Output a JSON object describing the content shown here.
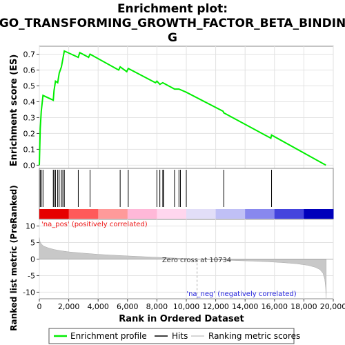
{
  "chart_data": {
    "type": "line",
    "title_lines": [
      "Enrichment plot:",
      "GO_TRANSFORMING_GROWTH_FACTOR_BETA_BINDIN",
      "G"
    ],
    "ylabel_top": "Enrichment score (ES)",
    "ylabel_bottom": "Ranked list metric (PreRanked)",
    "xlabel": "Rank in Ordered Dataset",
    "x_range": [
      0,
      20000
    ],
    "es_ylim": [
      -0.02,
      0.75
    ],
    "metric_ylim": [
      -12,
      12
    ],
    "es_yticks": [
      "0.0",
      "0.1",
      "0.2",
      "0.3",
      "0.4",
      "0.5",
      "0.6",
      "0.7"
    ],
    "metric_yticks": [
      "-10",
      "-5",
      "0",
      "5",
      "10"
    ],
    "xticks": [
      "0",
      "2,000",
      "4,000",
      "6,000",
      "8,000",
      "10,000",
      "12,000",
      "14,000",
      "16,000",
      "18,000",
      "20,000"
    ],
    "es_curve": [
      [
        0,
        0.0
      ],
      [
        60,
        0.23
      ],
      [
        130,
        0.34
      ],
      [
        250,
        0.44
      ],
      [
        950,
        0.41
      ],
      [
        1000,
        0.47
      ],
      [
        1100,
        0.53
      ],
      [
        1250,
        0.52
      ],
      [
        1350,
        0.58
      ],
      [
        1500,
        0.62
      ],
      [
        1600,
        0.67
      ],
      [
        1700,
        0.72
      ],
      [
        2650,
        0.68
      ],
      [
        2750,
        0.71
      ],
      [
        3350,
        0.68
      ],
      [
        3450,
        0.7
      ],
      [
        5400,
        0.6
      ],
      [
        5500,
        0.62
      ],
      [
        5950,
        0.59
      ],
      [
        6050,
        0.61
      ],
      [
        7900,
        0.52
      ],
      [
        8000,
        0.53
      ],
      [
        8200,
        0.51
      ],
      [
        8400,
        0.52
      ],
      [
        9200,
        0.48
      ],
      [
        9500,
        0.48
      ],
      [
        10000,
        0.46
      ],
      [
        12500,
        0.34
      ],
      [
        12550,
        0.33
      ],
      [
        15750,
        0.17
      ],
      [
        15800,
        0.19
      ],
      [
        19500,
        0.0
      ]
    ],
    "hits": [
      60,
      130,
      250,
      950,
      1000,
      1100,
      1250,
      1350,
      1500,
      1600,
      1700,
      2650,
      3450,
      5500,
      6050,
      8000,
      8200,
      8400,
      8450,
      9200,
      9500,
      9600,
      10000,
      12550,
      15800
    ],
    "metric_curve": [
      [
        0,
        6.5
      ],
      [
        50,
        5.2
      ],
      [
        150,
        4.5
      ],
      [
        300,
        3.9
      ],
      [
        600,
        3.4
      ],
      [
        1000,
        2.9
      ],
      [
        1500,
        2.5
      ],
      [
        2000,
        2.2
      ],
      [
        3000,
        1.8
      ],
      [
        4000,
        1.45
      ],
      [
        5000,
        1.2
      ],
      [
        6000,
        0.95
      ],
      [
        7000,
        0.75
      ],
      [
        8000,
        0.55
      ],
      [
        9000,
        0.35
      ],
      [
        10000,
        0.15
      ],
      [
        10734,
        0.0
      ],
      [
        11500,
        -0.15
      ],
      [
        12500,
        -0.3
      ],
      [
        13500,
        -0.45
      ],
      [
        14500,
        -0.6
      ],
      [
        15500,
        -0.8
      ],
      [
        16500,
        -1.05
      ],
      [
        17500,
        -1.4
      ],
      [
        18300,
        -1.9
      ],
      [
        18800,
        -2.5
      ],
      [
        19100,
        -3.2
      ],
      [
        19300,
        -4.3
      ],
      [
        19420,
        -6.0
      ],
      [
        19480,
        -8.5
      ],
      [
        19520,
        -11.8
      ]
    ],
    "zero_cross_label": "Zero cross at 10734",
    "zero_cross_rank": 10734,
    "pos_label": "'na_pos' (positively correlated)",
    "neg_label": "'na_neg' (negatively correlated)",
    "legend": [
      "Enrichment profile",
      "Hits",
      "Ranking metric scores"
    ],
    "colors": {
      "es_line": "#00ee00",
      "pos_text": "#ee1111",
      "neg_text": "#2222dd",
      "metric_fill": "#c8c8c8",
      "heat": [
        "#e60000",
        "#ff5a5a",
        "#ff9a9a",
        "#ffb8d8",
        "#ffd6ee",
        "#e2def8",
        "#c0c0f6",
        "#8888ee",
        "#4444dd",
        "#0000bb"
      ]
    }
  }
}
